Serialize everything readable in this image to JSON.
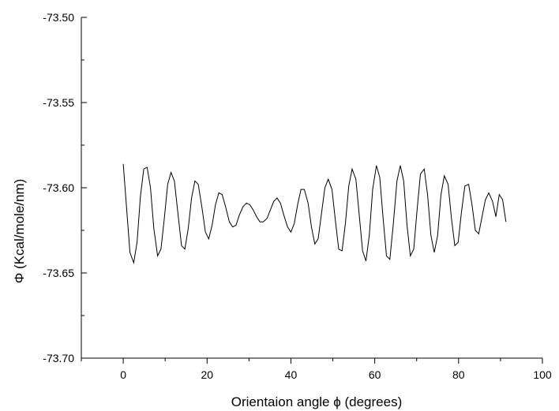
{
  "chart_data": {
    "type": "line",
    "xlabel": "Orientaion angle ϕ (degrees)",
    "ylabel": "Φ (Kcal/mole/nm)",
    "xlim": [
      -10,
      100
    ],
    "ylim": [
      -73.7,
      -73.5
    ],
    "x_ticks": [
      0,
      20,
      40,
      60,
      80,
      100
    ],
    "x_tick_labels": [
      "0",
      "20",
      "40",
      "60",
      "80",
      "100"
    ],
    "y_ticks": [
      -73.7,
      -73.65,
      -73.6,
      -73.55,
      -73.5
    ],
    "y_tick_labels": [
      "-73.70",
      "-73.65",
      "-73.60",
      "-73.55",
      "-73.50"
    ],
    "grid": false,
    "series": [
      {
        "color": "#000000",
        "points": [
          [
            0.0,
            -73.586
          ],
          [
            0.8,
            -73.612
          ],
          [
            1.6,
            -73.638
          ],
          [
            2.5,
            -73.644
          ],
          [
            3.3,
            -73.632
          ],
          [
            4.1,
            -73.605
          ],
          [
            4.9,
            -73.589
          ],
          [
            5.7,
            -73.588
          ],
          [
            6.5,
            -73.6
          ],
          [
            7.3,
            -73.624
          ],
          [
            8.2,
            -73.64
          ],
          [
            9.0,
            -73.636
          ],
          [
            9.8,
            -73.618
          ],
          [
            10.6,
            -73.598
          ],
          [
            11.4,
            -73.591
          ],
          [
            12.2,
            -73.596
          ],
          [
            13.0,
            -73.614
          ],
          [
            13.9,
            -73.634
          ],
          [
            14.7,
            -73.636
          ],
          [
            15.5,
            -73.624
          ],
          [
            16.3,
            -73.606
          ],
          [
            17.1,
            -73.596
          ],
          [
            17.9,
            -73.598
          ],
          [
            18.8,
            -73.612
          ],
          [
            19.6,
            -73.626
          ],
          [
            20.4,
            -73.63
          ],
          [
            21.2,
            -73.622
          ],
          [
            22.0,
            -73.61
          ],
          [
            22.8,
            -73.603
          ],
          [
            23.6,
            -73.604
          ],
          [
            24.5,
            -73.612
          ],
          [
            25.3,
            -73.62
          ],
          [
            26.1,
            -73.623
          ],
          [
            26.9,
            -73.622
          ],
          [
            27.7,
            -73.616
          ],
          [
            28.6,
            -73.611
          ],
          [
            29.4,
            -73.609
          ],
          [
            30.2,
            -73.61
          ],
          [
            31.0,
            -73.613
          ],
          [
            31.8,
            -73.617
          ],
          [
            32.6,
            -73.62
          ],
          [
            33.4,
            -73.62
          ],
          [
            34.3,
            -73.618
          ],
          [
            35.1,
            -73.613
          ],
          [
            35.9,
            -73.608
          ],
          [
            36.7,
            -73.606
          ],
          [
            37.5,
            -73.609
          ],
          [
            38.3,
            -73.616
          ],
          [
            39.2,
            -73.623
          ],
          [
            40.0,
            -73.626
          ],
          [
            40.8,
            -73.621
          ],
          [
            41.6,
            -73.61
          ],
          [
            42.4,
            -73.601
          ],
          [
            43.2,
            -73.601
          ],
          [
            44.1,
            -73.609
          ],
          [
            44.9,
            -73.623
          ],
          [
            45.7,
            -73.633
          ],
          [
            46.5,
            -73.63
          ],
          [
            47.3,
            -73.615
          ],
          [
            48.1,
            -73.6
          ],
          [
            48.9,
            -73.595
          ],
          [
            49.8,
            -73.601
          ],
          [
            50.6,
            -73.619
          ],
          [
            51.4,
            -73.636
          ],
          [
            52.2,
            -73.637
          ],
          [
            53.0,
            -73.621
          ],
          [
            53.8,
            -73.599
          ],
          [
            54.6,
            -73.589
          ],
          [
            55.5,
            -73.595
          ],
          [
            56.3,
            -73.616
          ],
          [
            57.1,
            -73.637
          ],
          [
            57.9,
            -73.643
          ],
          [
            58.7,
            -73.628
          ],
          [
            59.5,
            -73.601
          ],
          [
            60.4,
            -73.587
          ],
          [
            61.2,
            -73.594
          ],
          [
            62.0,
            -73.618
          ],
          [
            62.8,
            -73.64
          ],
          [
            63.6,
            -73.642
          ],
          [
            64.4,
            -73.622
          ],
          [
            65.3,
            -73.596
          ],
          [
            66.1,
            -73.587
          ],
          [
            66.9,
            -73.596
          ],
          [
            67.7,
            -73.622
          ],
          [
            68.5,
            -73.64
          ],
          [
            69.3,
            -73.636
          ],
          [
            70.1,
            -73.613
          ],
          [
            70.9,
            -73.592
          ],
          [
            71.8,
            -73.589
          ],
          [
            72.6,
            -73.604
          ],
          [
            73.4,
            -73.628
          ],
          [
            74.2,
            -73.638
          ],
          [
            75.0,
            -73.628
          ],
          [
            75.8,
            -73.604
          ],
          [
            76.6,
            -73.593
          ],
          [
            77.5,
            -73.598
          ],
          [
            78.3,
            -73.618
          ],
          [
            79.1,
            -73.634
          ],
          [
            79.9,
            -73.632
          ],
          [
            80.7,
            -73.614
          ],
          [
            81.5,
            -73.599
          ],
          [
            82.4,
            -73.598
          ],
          [
            83.2,
            -73.61
          ],
          [
            84.0,
            -73.625
          ],
          [
            84.8,
            -73.627
          ],
          [
            85.6,
            -73.617
          ],
          [
            86.4,
            -73.607
          ],
          [
            87.2,
            -73.603
          ],
          [
            88.1,
            -73.608
          ],
          [
            88.9,
            -73.617
          ],
          [
            89.7,
            -73.604
          ],
          [
            90.5,
            -73.607
          ],
          [
            91.3,
            -73.62
          ]
        ]
      }
    ]
  }
}
